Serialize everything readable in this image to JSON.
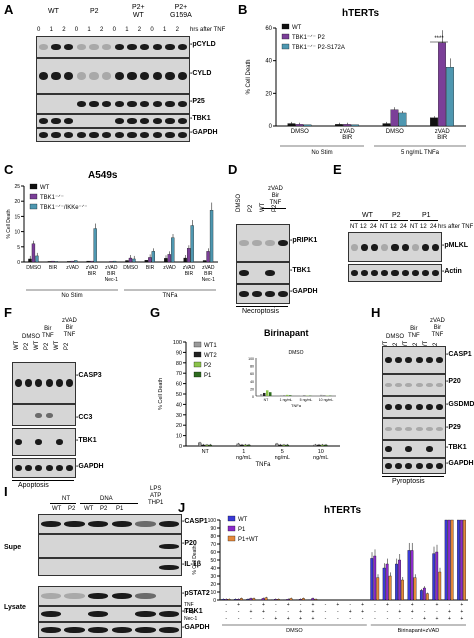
{
  "panels": {
    "A": {
      "letter": "A",
      "groups": [
        "WT",
        "P2",
        "P2+\nWT",
        "P2+\nG159A"
      ],
      "time_label": "hrs after TNF",
      "times": [
        "0",
        "1",
        "2",
        "0",
        "1",
        "2",
        "0",
        "1",
        "2",
        "0",
        "1",
        "2"
      ],
      "bands": [
        "-pCYLD",
        "-CYLD",
        "-P25",
        "-TBK1",
        "-GAPDH"
      ]
    },
    "B": {
      "letter": "B",
      "chart_data": {
        "type": "bar",
        "title": "hTERTs",
        "ylabel": "% Cell Death",
        "ylim": [
          0,
          60
        ],
        "yticks": [
          0,
          20,
          40,
          60
        ],
        "categories": [
          "DMSO",
          "zVAD BIR",
          "DMSO",
          "zVAD BIR"
        ],
        "groups": [
          "No Stim",
          "5 ng/mL TNFa"
        ],
        "series": [
          {
            "name": "WT",
            "color": "#111111",
            "values": [
              1.5,
              1,
              1.5,
              5
            ]
          },
          {
            "name": "TBK1⁻ᐟ⁻ P2",
            "color": "#7b3f98",
            "values": [
              1,
              1,
              10,
              51
            ]
          },
          {
            "name": "TBK1⁻ᐟ⁻ P2-S172A",
            "color": "#4e97b0",
            "values": [
              0.8,
              0.8,
              8,
              36
            ]
          }
        ],
        "annotation": "****"
      }
    },
    "C": {
      "letter": "C",
      "chart_data": {
        "type": "bar",
        "title": "A549s",
        "ylabel": "% Cell Death",
        "ylim": [
          0,
          25
        ],
        "yticks": [
          0,
          5,
          10,
          15,
          20,
          25
        ],
        "categories": [
          "DMSO",
          "BIR",
          "zVAD",
          "zVAD BIR",
          "zVAD BIR Nec-1",
          "DMSO",
          "BIR",
          "zVAD",
          "zVAD BIR",
          "zVAD BIR Nec-1"
        ],
        "groups": [
          "No Stim",
          "TNFa"
        ],
        "series": [
          {
            "name": "WT",
            "color": "#111111",
            "values": [
              1,
              0.2,
              0.2,
              0.3,
              0.1,
              0.5,
              0.6,
              1.2,
              1.3,
              0.5
            ]
          },
          {
            "name": "TBK1⁻ᐟ⁻",
            "color": "#7b3f98",
            "values": [
              6,
              0.3,
              0.3,
              0.3,
              0.2,
              1.3,
              1.5,
              2.5,
              4.5,
              3.5
            ]
          },
          {
            "name": "TBK1⁻ᐟ⁻/IKKe⁻ᐟ⁻",
            "color": "#4e97b0",
            "values": [
              2,
              0.2,
              0.5,
              11,
              0.3,
              1,
              3.5,
              8,
              12,
              17
            ]
          }
        ]
      }
    },
    "D": {
      "letter": "D",
      "lanes": [
        "DMSO",
        "P2",
        "WT",
        "P2"
      ],
      "top_label": "zVAD\nBir\nTNF",
      "bands": [
        "-pRIPK1",
        "-TBK1",
        "-GAPDH"
      ],
      "caption": "Necroptosis"
    },
    "E": {
      "letter": "E",
      "groups": [
        "WT",
        "P2",
        "P1"
      ],
      "times": [
        "NT",
        "12",
        "24",
        "NT",
        "12",
        "24",
        "NT",
        "12",
        "24"
      ],
      "time_label": "hrs after TNF",
      "bands": [
        "-pMLKL",
        "-Actin"
      ]
    },
    "F": {
      "letter": "F",
      "top_labels": [
        "DMSO",
        "Bir\nTNF",
        "zVAD\nBir\nTNF"
      ],
      "lanes": [
        "WT",
        "P2",
        "WT",
        "P2",
        "WT",
        "P2"
      ],
      "bands": [
        "-CASP3",
        "-CC3",
        "-TBK1",
        "-GAPDH"
      ],
      "caption": "Apoptosis"
    },
    "G": {
      "letter": "G",
      "chart_data": {
        "type": "bar",
        "title": "Birinapant",
        "ylabel": "% Cell Death",
        "xlabel": "TNFa",
        "ylim": [
          0,
          100
        ],
        "yticks": [
          0,
          10,
          20,
          30,
          40,
          50,
          60,
          70,
          80,
          90,
          100
        ],
        "categories": [
          "NT",
          "1 ng/mL",
          "5 ng/mL",
          "10 ng/mL"
        ],
        "series": [
          {
            "name": "WT1",
            "color": "#9a9a9a",
            "values": [
              3,
              2,
              2,
              1
            ]
          },
          {
            "name": "WT2",
            "color": "#222222",
            "values": [
              1,
              1,
              1,
              1
            ]
          },
          {
            "name": "P2",
            "color": "#8bc34a",
            "values": [
              1,
              1,
              1,
              1
            ]
          },
          {
            "name": "P1",
            "color": "#2e6b1f",
            "values": [
              1,
              1,
              1,
              1
            ]
          }
        ],
        "inset": {
          "title": "DMSO",
          "xlabel": "TNFa",
          "ylim": [
            0,
            100
          ],
          "yticks": [
            0,
            20,
            40,
            60,
            80,
            100
          ],
          "categories": [
            "NT",
            "1 ng/mL",
            "5 ng/mL",
            "10 ng/mL"
          ],
          "series": [
            {
              "name": "WT1",
              "values": [
                5,
                2,
                1,
                3
              ]
            },
            {
              "name": "WT2",
              "values": [
                8,
                1,
                1,
                1
              ]
            },
            {
              "name": "P2",
              "values": [
                15,
                3,
                1,
                1
              ]
            },
            {
              "name": "P1",
              "values": [
                10,
                2,
                1,
                1
              ]
            }
          ]
        }
      }
    },
    "H": {
      "letter": "H",
      "top_labels": [
        "DMSO",
        "Bir\nTNF",
        "zVAD\nBir\nTNF"
      ],
      "lanes": [
        "WT",
        "P2",
        "WT",
        "P2",
        "WT",
        "P2"
      ],
      "bands": [
        "-CASP1",
        "-P20",
        "-GSDMD",
        "-P29",
        "-TBK1",
        "-GAPDH"
      ],
      "caption": "Pyroptosis"
    },
    "I": {
      "letter": "I",
      "top_labels": [
        "NT",
        "DNA",
        "LPS\nATP\nTHP1"
      ],
      "lanes": [
        "WT",
        "P2",
        "WT",
        "P2",
        "P1"
      ],
      "bands": [
        "-CASP1",
        "-P20",
        "-IL-1β",
        "-pSTAT2",
        "-TBK1",
        "-GAPDH"
      ],
      "side_labels": [
        "Supe",
        "Lysate"
      ]
    },
    "J": {
      "letter": "J",
      "chart_data": {
        "type": "bar",
        "title": "hTERTs",
        "ylabel": "% Cell Death",
        "ylim": [
          0,
          100
        ],
        "yticks": [
          0,
          10,
          20,
          30,
          40,
          50,
          60,
          70,
          80,
          90,
          100
        ],
        "series": [
          {
            "name": "WT",
            "color": "#3a3ad6",
            "values": [
              1,
              1,
              1,
              0.5,
              0.5,
              0.5,
              0.5,
              0.5,
              0,
              0,
              0,
              0,
              52,
              40,
              45,
              62,
              12,
              58,
              100,
              100
            ]
          },
          {
            "name": "P1",
            "color": "#8a2bc9",
            "values": [
              1,
              1,
              2,
              2,
              1,
              1,
              1,
              2,
              0,
              0,
              0,
              0,
              55,
              45,
              50,
              62,
              15,
              60,
              100,
              100
            ]
          },
          {
            "name": "P1+WT",
            "color": "#e5893a",
            "values": [
              1,
              2,
              2,
              3,
              1,
              2,
              2,
              1,
              0,
              0,
              0,
              0,
              28,
              30,
              25,
              28,
              8,
              35,
              100,
              100
            ]
          }
        ],
        "conditions": {
          "TNF": [
            "-",
            "+",
            "-",
            "+",
            "-",
            "+",
            "-",
            "+",
            "-",
            "+",
            "-",
            "+",
            "-",
            "+",
            "-",
            "+",
            "-",
            "+",
            "-",
            "+"
          ],
          "IFNy": [
            "-",
            "-",
            "+",
            "+",
            "-",
            "-",
            "+",
            "+",
            "-",
            "-",
            "+",
            "+",
            "-",
            "-",
            "+",
            "+",
            "-",
            "-",
            "+",
            "+"
          ],
          "Nec-1": [
            "-",
            "-",
            "-",
            "-",
            "+",
            "+",
            "+",
            "+",
            "-",
            "-",
            "-",
            "-",
            "-",
            "-",
            "-",
            "-",
            "+",
            "+",
            "+",
            "+"
          ]
        },
        "groups": [
          "DMSO",
          "Birinapant+zVAD"
        ]
      }
    }
  }
}
